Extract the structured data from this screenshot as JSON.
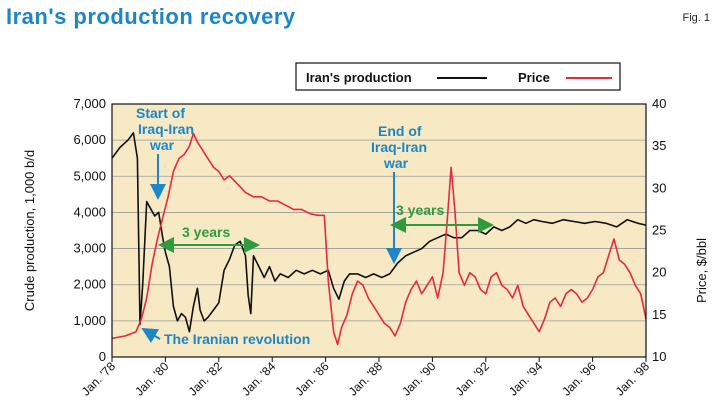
{
  "header": {
    "title": "Iran's production recovery",
    "fig_label": "Fig. 1"
  },
  "colors": {
    "production": "#111111",
    "price": "#e8293c",
    "background": "#f7e9c4",
    "annotation": "#1d86c7",
    "span_arrow": "#2f9a3e",
    "title": "#1d86c7"
  },
  "chart_data": {
    "type": "line",
    "x_unit": "year",
    "xlabel": "",
    "ylabel_left": "Crude production, 1,000 b/d",
    "ylabel_right": "Price, $/bbl",
    "ylim_left": [
      0,
      7000
    ],
    "ylim_right": [
      10,
      40
    ],
    "xlim": [
      1978,
      1998
    ],
    "yticks_left": [
      "0",
      "1,000",
      "2,000",
      "3,000",
      "4,000",
      "5,000",
      "6,000",
      "7,000"
    ],
    "yticks_right": [
      "10",
      "15",
      "20",
      "25",
      "30",
      "35",
      "40"
    ],
    "xticks": [
      "Jan. '78",
      "Jan. '80",
      "Jan. '82",
      "Jan. '84",
      "Jan. '86",
      "Jan. '88",
      "Jan. '90",
      "Jan. '92",
      "Jan. '94",
      "Jan. '96",
      "Jan. '98"
    ],
    "grid": true,
    "legend": "top-right",
    "series": [
      {
        "name": "Iran's production",
        "axis": "left",
        "color": "#111111",
        "x": [
          1978.0,
          1978.3,
          1978.6,
          1978.8,
          1978.95,
          1979.05,
          1979.15,
          1979.3,
          1979.45,
          1979.6,
          1979.75,
          1979.9,
          1980.0,
          1980.15,
          1980.3,
          1980.45,
          1980.6,
          1980.75,
          1980.9,
          1981.05,
          1981.2,
          1981.3,
          1981.45,
          1981.6,
          1981.8,
          1982.0,
          1982.2,
          1982.4,
          1982.6,
          1982.8,
          1983.0,
          1983.1,
          1983.2,
          1983.3,
          1983.5,
          1983.7,
          1983.9,
          1984.1,
          1984.3,
          1984.6,
          1984.9,
          1985.2,
          1985.5,
          1985.8,
          1986.1,
          1986.3,
          1986.5,
          1986.7,
          1986.9,
          1987.2,
          1987.5,
          1987.8,
          1988.1,
          1988.4,
          1988.7,
          1989.0,
          1989.3,
          1989.6,
          1989.9,
          1990.2,
          1990.5,
          1990.8,
          1991.1,
          1991.4,
          1991.7,
          1992.0,
          1992.3,
          1992.6,
          1992.9,
          1993.2,
          1993.5,
          1993.8,
          1994.1,
          1994.5,
          1994.9,
          1995.3,
          1995.7,
          1996.1,
          1996.5,
          1996.9,
          1997.3,
          1997.7,
          1998.0
        ],
        "values": [
          5500,
          5800,
          6000,
          6200,
          5500,
          900,
          2000,
          4300,
          4100,
          3900,
          4000,
          3300,
          2900,
          2500,
          1400,
          1000,
          1200,
          1100,
          700,
          1400,
          1900,
          1300,
          1000,
          1100,
          1300,
          1500,
          2400,
          2700,
          3100,
          3200,
          2800,
          1700,
          1200,
          2800,
          2500,
          2200,
          2500,
          2100,
          2300,
          2200,
          2400,
          2300,
          2400,
          2300,
          2400,
          1900,
          1600,
          2100,
          2300,
          2300,
          2200,
          2300,
          2200,
          2300,
          2600,
          2800,
          2900,
          3000,
          3200,
          3300,
          3400,
          3300,
          3300,
          3500,
          3500,
          3400,
          3600,
          3500,
          3600,
          3800,
          3700,
          3800,
          3750,
          3700,
          3800,
          3750,
          3700,
          3750,
          3700,
          3600,
          3800,
          3700,
          3650
        ]
      },
      {
        "name": "Price",
        "axis": "right",
        "color": "#e8293c",
        "x": [
          1978.0,
          1978.5,
          1978.9,
          1979.1,
          1979.3,
          1979.5,
          1979.7,
          1979.9,
          1980.1,
          1980.3,
          1980.5,
          1980.7,
          1980.9,
          1981.05,
          1981.2,
          1981.4,
          1981.6,
          1981.8,
          1982.0,
          1982.2,
          1982.4,
          1982.7,
          1983.0,
          1983.3,
          1983.6,
          1983.9,
          1984.2,
          1984.5,
          1984.8,
          1985.1,
          1985.4,
          1985.7,
          1985.95,
          1986.1,
          1986.3,
          1986.45,
          1986.6,
          1986.8,
          1987.0,
          1987.2,
          1987.4,
          1987.6,
          1987.8,
          1988.0,
          1988.2,
          1988.4,
          1988.6,
          1988.8,
          1989.0,
          1989.2,
          1989.4,
          1989.6,
          1989.8,
          1990.0,
          1990.2,
          1990.4,
          1990.55,
          1990.7,
          1990.85,
          1991.0,
          1991.2,
          1991.4,
          1991.6,
          1991.8,
          1992.0,
          1992.2,
          1992.4,
          1992.6,
          1992.8,
          1993.0,
          1993.2,
          1993.4,
          1993.6,
          1993.8,
          1994.0,
          1994.2,
          1994.4,
          1994.6,
          1994.8,
          1995.0,
          1995.2,
          1995.4,
          1995.6,
          1995.8,
          1996.0,
          1996.2,
          1996.4,
          1996.6,
          1996.8,
          1997.0,
          1997.2,
          1997.4,
          1997.6,
          1997.8,
          1998.0
        ],
        "values": [
          12.2,
          12.5,
          13.0,
          14.5,
          17.0,
          21.0,
          24.0,
          26.5,
          29.0,
          32.0,
          33.5,
          34.0,
          35.0,
          36.5,
          35.5,
          34.5,
          33.5,
          32.5,
          32.0,
          31.0,
          31.5,
          30.5,
          29.5,
          29.0,
          29.0,
          28.5,
          28.5,
          28.0,
          27.5,
          27.5,
          27.0,
          26.8,
          26.8,
          19.0,
          13.0,
          11.5,
          13.5,
          15.0,
          17.5,
          19.0,
          18.5,
          17.0,
          16.0,
          15.0,
          14.0,
          13.5,
          12.5,
          14.0,
          16.5,
          18.0,
          19.0,
          17.5,
          18.5,
          19.5,
          17.0,
          20.0,
          26.0,
          32.5,
          27.0,
          20.0,
          18.5,
          20.0,
          19.5,
          18.0,
          17.5,
          19.5,
          20.0,
          18.5,
          18.0,
          17.0,
          18.5,
          16.0,
          15.0,
          14.0,
          13.0,
          14.5,
          16.5,
          17.0,
          16.0,
          17.5,
          18.0,
          17.5,
          16.5,
          17.0,
          18.0,
          19.5,
          20.0,
          22.0,
          24.0,
          21.5,
          21.0,
          20.0,
          18.5,
          17.5,
          14.5
        ]
      }
    ],
    "annotations": {
      "war_start": [
        "Start of",
        "Iraq-Iran",
        "war"
      ],
      "war_end": [
        "End of",
        "Iraq-Iran",
        "war"
      ],
      "revolution": "The Iranian revolution",
      "span1": "3 years",
      "span2": "3 years"
    }
  }
}
